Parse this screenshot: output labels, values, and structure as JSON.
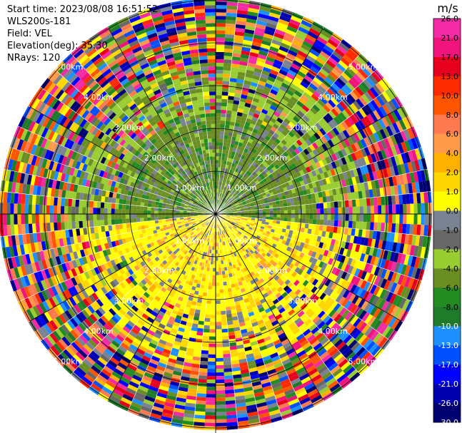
{
  "header": {
    "start_time": "Start time: 2023/08/08 16:51:52",
    "site": "WLS200s-181",
    "field": "Field: VEL",
    "elevation": "Elevation(deg): 35.30",
    "nrays": "NRays: 120"
  },
  "chart_data": {
    "type": "heatmap",
    "projection": "polar",
    "field": "VEL",
    "nrays": 120,
    "range_rings_km": [
      1,
      2,
      3,
      4,
      5
    ],
    "ring_labels": [
      "1.00km",
      "2.00km",
      "3.00km",
      "4.00km",
      "5.00km"
    ],
    "radial_spokes_deg": [
      0,
      30,
      60,
      90,
      120,
      150,
      180,
      210,
      240,
      270,
      300,
      330
    ],
    "colorbar": {
      "unit": "m/s",
      "ticks": [
        "26.0",
        "21.0",
        "17.0",
        "13.0",
        "10.0",
        "8.0",
        "6.0",
        "4.0",
        "2.0",
        "1.0",
        "0.0",
        "-1.0",
        "-2.0",
        "-4.0",
        "-6.0",
        "-8.0",
        "-10.0",
        "-13.0",
        "-17.0",
        "-21.0",
        "-26.0",
        "-30.0"
      ],
      "colors": [
        "#f52ba5",
        "#f0147c",
        "#e6001e",
        "#ff2a00",
        "#ff5500",
        "#ff7a50",
        "#ff9a4a",
        "#ffb000",
        "#ffd700",
        "#ffff00",
        "#7a8391",
        "#686868",
        "#9acd32",
        "#6b8e23",
        "#228b22",
        "#1f7a2a",
        "#1e90ff",
        "#0050ff",
        "#0000ff",
        "#0000b0",
        "#000070",
        "#000040"
      ]
    }
  }
}
